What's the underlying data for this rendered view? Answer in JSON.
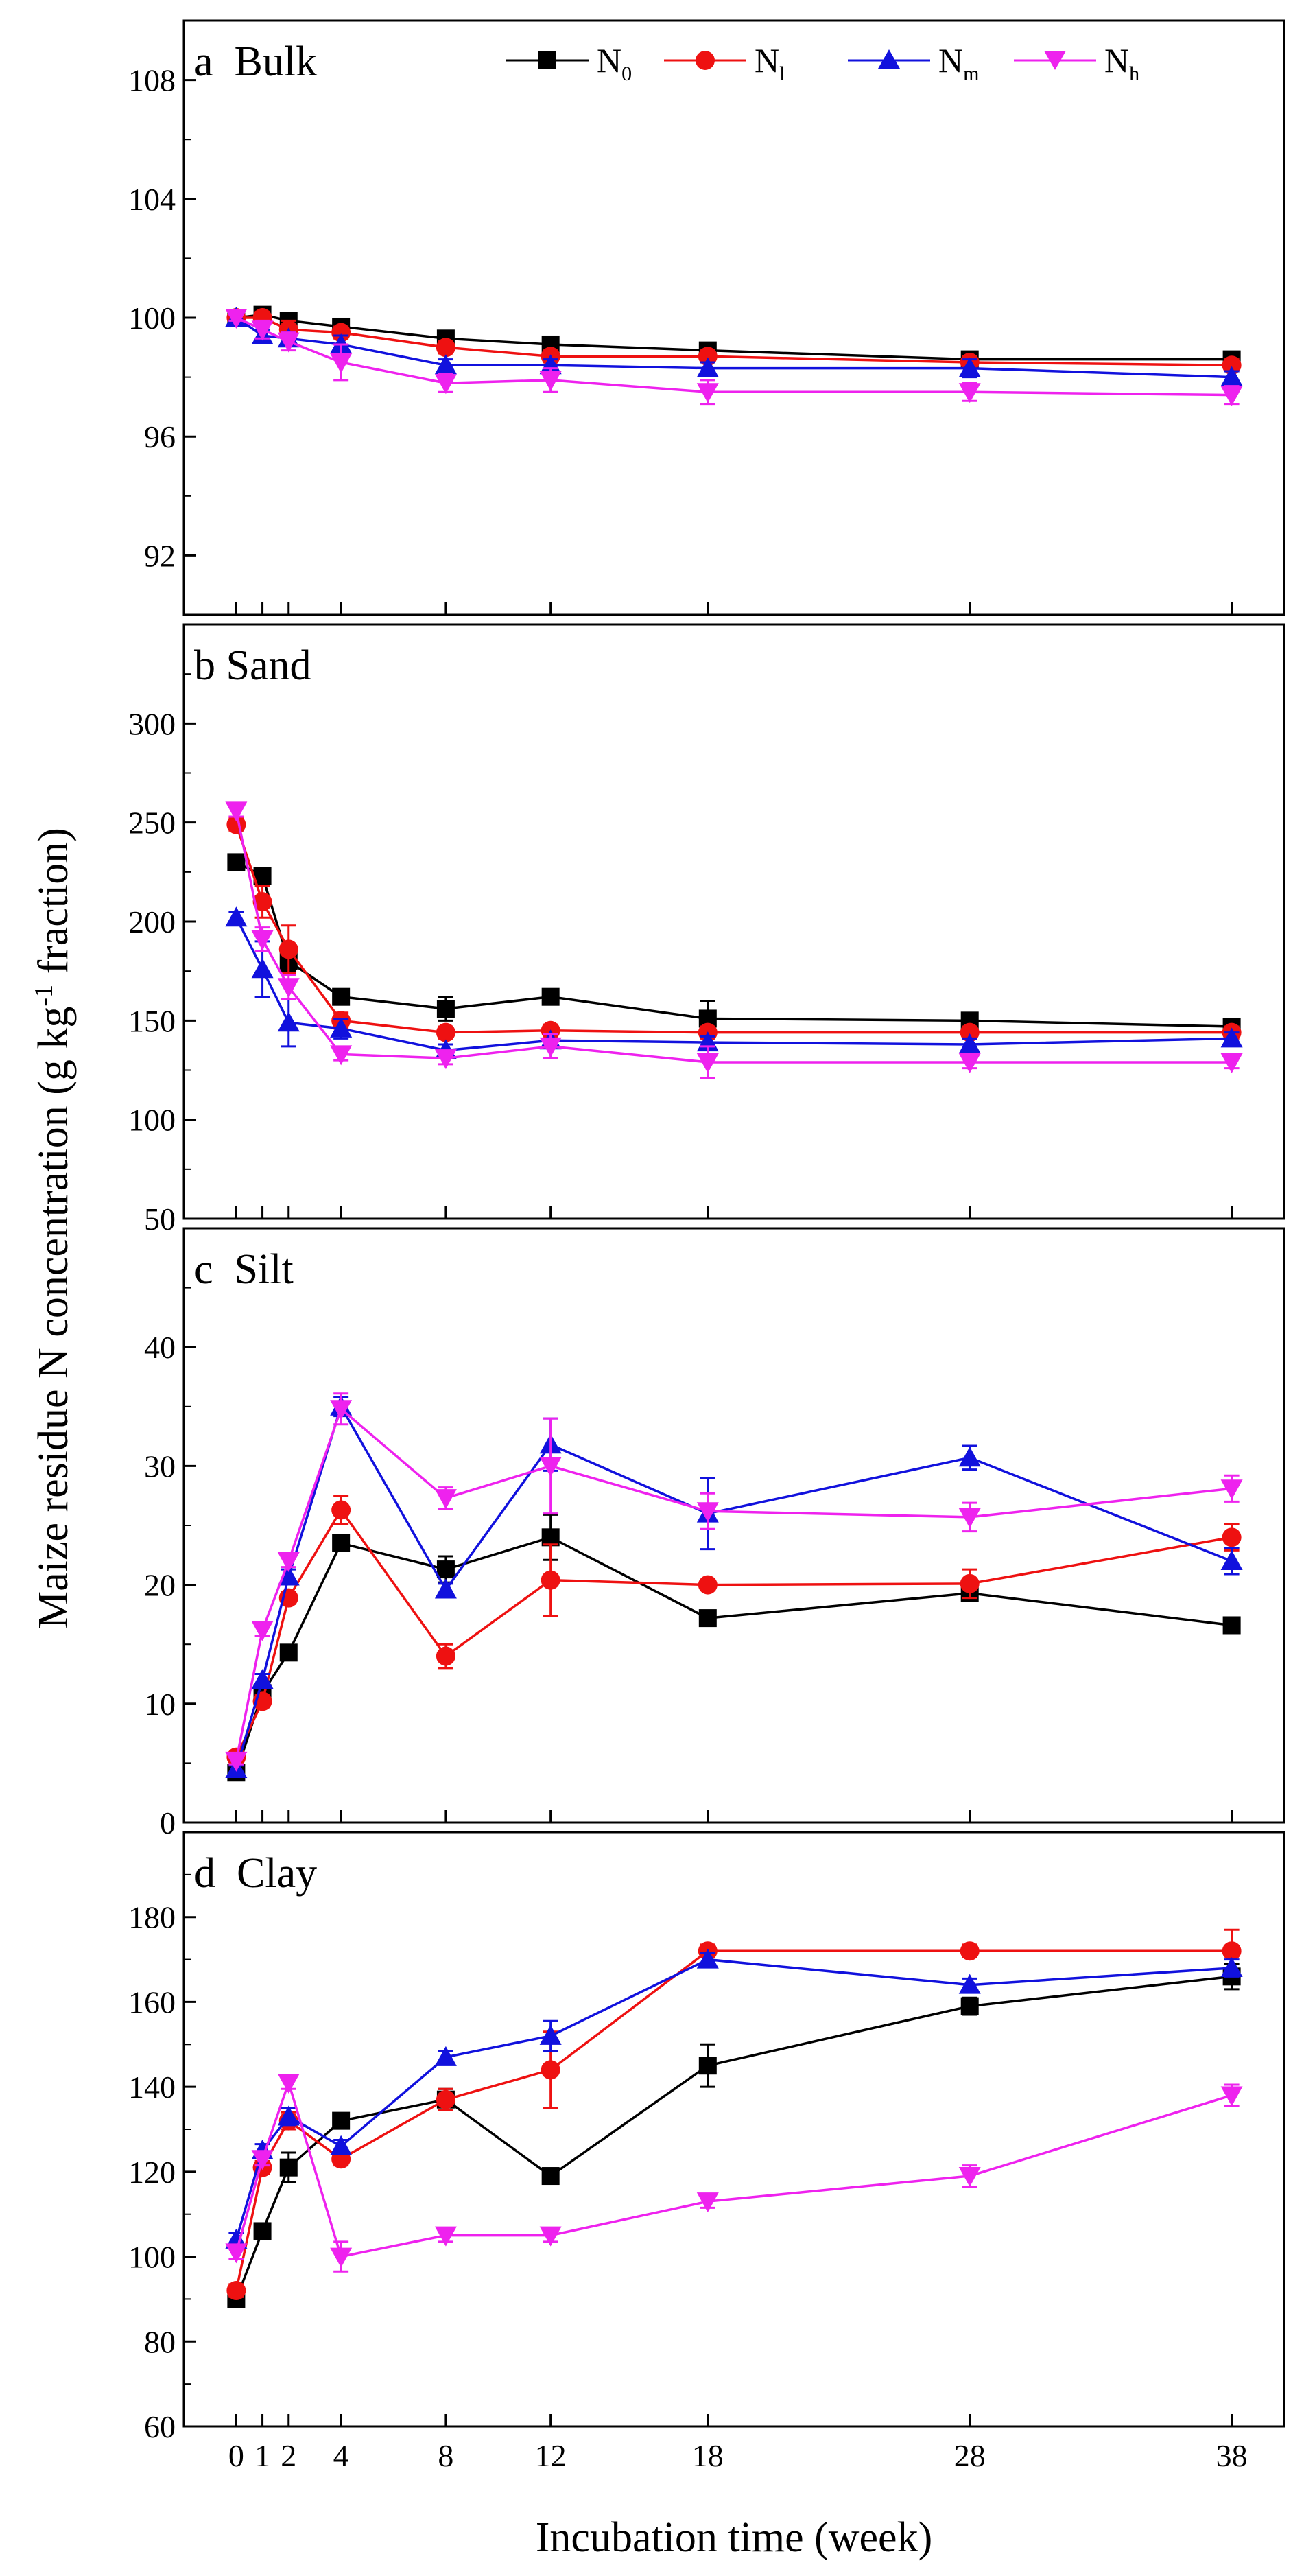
{
  "figure": {
    "ylabel": "Maize residue N concentration (g kg",
    "ylabel_sup": "-1",
    "ylabel_end": " fraction)",
    "xlabel": "Incubation time (week)"
  },
  "legend": [
    {
      "key": "N0",
      "base": "N",
      "sub": "0",
      "color": "#000000",
      "marker": "square"
    },
    {
      "key": "Nl",
      "base": "N",
      "sub": "l",
      "color": "#ee1111",
      "marker": "circle"
    },
    {
      "key": "Nm",
      "base": "N",
      "sub": "m",
      "color": "#1111dd",
      "marker": "triangle-up"
    },
    {
      "key": "Nh",
      "base": "N",
      "sub": "h",
      "color": "#ee22ee",
      "marker": "triangle-down"
    }
  ],
  "chart_data": [
    {
      "type": "line",
      "panel": "a  Bulk",
      "x": [
        0,
        1,
        2,
        4,
        8,
        12,
        18,
        28,
        38
      ],
      "xticks": [
        "0",
        "1",
        "2",
        "4",
        "8",
        "12",
        "18",
        "28",
        "38"
      ],
      "xlim": [
        -2,
        40
      ],
      "ylim": [
        90,
        110
      ],
      "yticks": [
        92,
        96,
        100,
        104,
        108
      ],
      "series": [
        {
          "name": "N0",
          "values": [
            100,
            100.1,
            99.9,
            99.7,
            99.3,
            99.1,
            98.9,
            98.6,
            98.6
          ],
          "err": [
            0.1,
            0.2,
            0.2,
            0.2,
            0.2,
            0.2,
            0.2,
            0.2,
            0.2
          ]
        },
        {
          "name": "Nl",
          "values": [
            100,
            100.0,
            99.6,
            99.5,
            99.0,
            98.7,
            98.7,
            98.5,
            98.4
          ],
          "err": [
            0.1,
            0.2,
            0.3,
            0.2,
            0.2,
            0.2,
            0.2,
            0.2,
            0.2
          ]
        },
        {
          "name": "Nm",
          "values": [
            100,
            99.4,
            99.3,
            99.1,
            98.4,
            98.4,
            98.3,
            98.3,
            98.0
          ],
          "err": [
            0.1,
            0.2,
            0.2,
            0.3,
            0.2,
            0.2,
            0.2,
            0.3,
            0.2
          ]
        },
        {
          "name": "Nh",
          "values": [
            100,
            99.6,
            99.2,
            98.5,
            97.8,
            97.9,
            97.5,
            97.5,
            97.4
          ],
          "err": [
            0.1,
            0.3,
            0.3,
            0.6,
            0.3,
            0.4,
            0.4,
            0.3,
            0.3
          ]
        }
      ]
    },
    {
      "type": "line",
      "panel": "b Sand",
      "x": [
        0,
        1,
        2,
        4,
        8,
        12,
        18,
        28,
        38
      ],
      "xticks": [
        "0",
        "1",
        "2",
        "4",
        "8",
        "12",
        "18",
        "28",
        "38"
      ],
      "xlim": [
        -2,
        40
      ],
      "ylim": [
        50,
        350
      ],
      "yticks": [
        50,
        100,
        150,
        200,
        250,
        300
      ],
      "series": [
        {
          "name": "N0",
          "values": [
            230,
            223,
            180,
            162,
            156,
            162,
            151,
            150,
            147
          ],
          "err": [
            3,
            4,
            5,
            3,
            6,
            3,
            9,
            3,
            3
          ]
        },
        {
          "name": "Nl",
          "values": [
            249,
            210,
            186,
            150,
            144,
            145,
            144,
            144,
            144
          ],
          "err": [
            3,
            8,
            12,
            4,
            3,
            3,
            3,
            3,
            3
          ]
        },
        {
          "name": "Nm",
          "values": [
            202,
            176,
            149,
            146,
            135,
            140,
            139,
            138,
            141
          ],
          "err": [
            3,
            14,
            12,
            5,
            3,
            3,
            3,
            3,
            3
          ]
        },
        {
          "name": "Nh",
          "values": [
            256,
            191,
            167,
            133,
            131,
            137,
            129,
            129,
            129
          ],
          "err": [
            3,
            6,
            6,
            3,
            3,
            6,
            8,
            3,
            3
          ]
        }
      ]
    },
    {
      "type": "line",
      "panel": "c  Silt",
      "x": [
        0,
        1,
        2,
        4,
        8,
        12,
        18,
        28,
        38
      ],
      "xticks": [
        "0",
        "1",
        "2",
        "4",
        "8",
        "12",
        "18",
        "28",
        "38"
      ],
      "xlim": [
        -2,
        40
      ],
      "ylim": [
        0,
        50
      ],
      "yticks": [
        0,
        10,
        20,
        30,
        40
      ],
      "series": [
        {
          "name": "N0",
          "values": [
            4.2,
            10.9,
            14.3,
            23.5,
            21.3,
            24.0,
            17.2,
            19.3,
            16.6
          ],
          "err": [
            0.3,
            0.5,
            0.5,
            0.6,
            1.1,
            1.9,
            0.4,
            0.5,
            0.4
          ]
        },
        {
          "name": "Nl",
          "values": [
            5.5,
            10.2,
            18.9,
            26.3,
            14.0,
            20.4,
            20.0,
            20.1,
            24.0
          ],
          "err": [
            0.3,
            0.5,
            0.5,
            1.2,
            1.0,
            3.0,
            0.4,
            1.2,
            1.1
          ]
        },
        {
          "name": "Nm",
          "values": [
            4.5,
            12.0,
            20.7,
            35.0,
            19.6,
            31.8,
            26.0,
            30.7,
            22.0
          ],
          "err": [
            0.3,
            0.5,
            0.6,
            0.8,
            0.5,
            2.2,
            3.0,
            1.0,
            1.1
          ]
        },
        {
          "name": "Nh",
          "values": [
            5.2,
            16.2,
            22.0,
            34.8,
            27.3,
            30.0,
            26.2,
            25.7,
            28.1
          ],
          "err": [
            0.3,
            0.5,
            0.5,
            1.3,
            0.9,
            4.0,
            1.5,
            1.2,
            1.1
          ]
        }
      ]
    },
    {
      "type": "line",
      "panel": "d  Clay",
      "x": [
        0,
        1,
        2,
        4,
        8,
        12,
        18,
        28,
        38
      ],
      "xticks": [
        "0",
        "1",
        "2",
        "4",
        "8",
        "12",
        "18",
        "28",
        "38"
      ],
      "xlim": [
        -2,
        40
      ],
      "ylim": [
        60,
        200
      ],
      "yticks": [
        60,
        80,
        100,
        120,
        140,
        160,
        180
      ],
      "xlabel": "Incubation time (week)",
      "series": [
        {
          "name": "N0",
          "values": [
            90,
            106,
            121,
            132,
            137,
            119,
            145,
            159,
            166
          ],
          "err": [
            1.5,
            1.5,
            3.5,
            1.5,
            2.5,
            1.5,
            5,
            2,
            3
          ]
        },
        {
          "name": "Nl",
          "values": [
            92,
            121,
            132,
            123,
            137,
            144,
            172,
            172,
            172
          ],
          "err": [
            1.5,
            1.5,
            2,
            1.5,
            2.5,
            9,
            1.5,
            1.5,
            5
          ]
        },
        {
          "name": "Nm",
          "values": [
            104,
            125,
            133,
            126,
            147,
            152,
            170,
            164,
            168
          ],
          "err": [
            1.5,
            1.5,
            2,
            1.5,
            1.5,
            3.5,
            1.5,
            1.5,
            2
          ]
        },
        {
          "name": "Nh",
          "values": [
            101,
            123,
            141,
            100,
            105,
            105,
            113,
            119,
            138
          ],
          "err": [
            1.5,
            1.5,
            1.5,
            3.5,
            1.5,
            1.5,
            1.5,
            2.5,
            2.5
          ]
        }
      ]
    }
  ]
}
